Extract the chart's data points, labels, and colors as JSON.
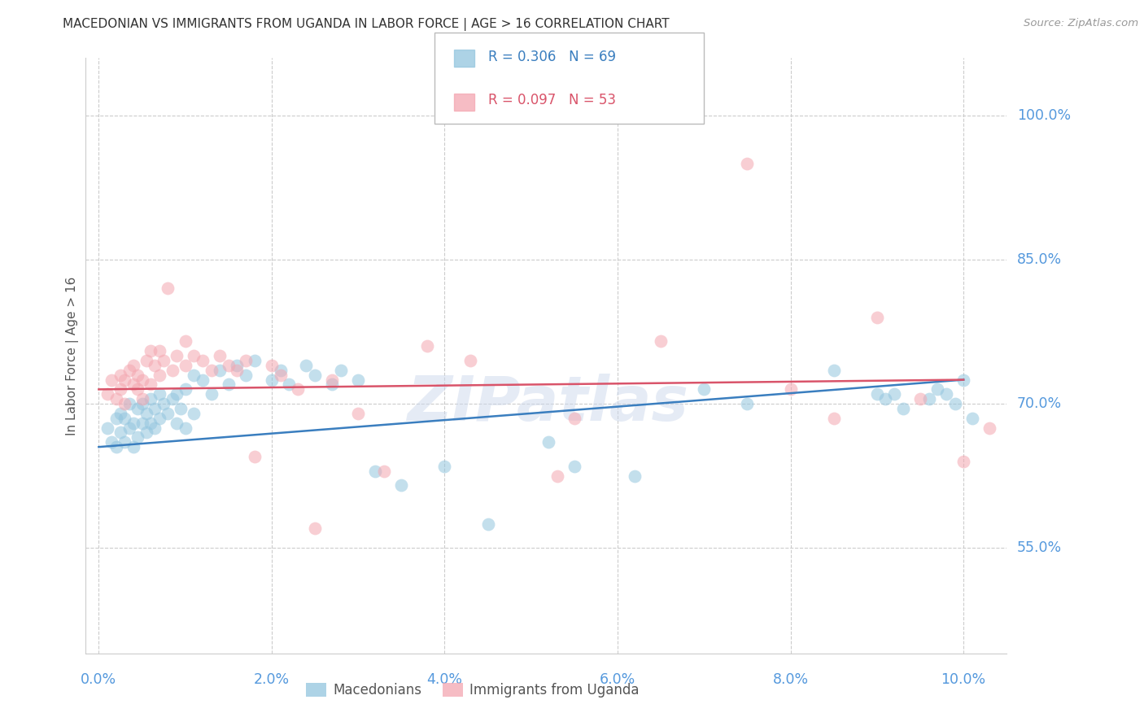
{
  "title": "MACEDONIAN VS IMMIGRANTS FROM UGANDA IN LABOR FORCE | AGE > 16 CORRELATION CHART",
  "source": "Source: ZipAtlas.com",
  "ylabel": "In Labor Force | Age > 16",
  "blue_r": "R = 0.306",
  "blue_n": "N = 69",
  "pink_r": "R = 0.097",
  "pink_n": "N = 53",
  "legend_label_blue": "Macedonians",
  "legend_label_pink": "Immigrants from Uganda",
  "watermark": "ZIPatlas",
  "blue_color": "#92c5de",
  "pink_color": "#f4a6b0",
  "blue_line_color": "#3a7ebf",
  "pink_line_color": "#d9546a",
  "grid_color": "#cccccc",
  "background_color": "#ffffff",
  "tick_label_color": "#5599dd",
  "title_color": "#333333",
  "xlim": [
    -0.15,
    10.5
  ],
  "ylim": [
    44.0,
    106.0
  ],
  "yticks": [
    55.0,
    70.0,
    85.0,
    100.0
  ],
  "xticks": [
    0,
    2,
    4,
    6,
    8,
    10
  ],
  "xtick_labels": [
    "0.0%",
    "2.0%",
    "4.0%",
    "6.0%",
    "8.0%",
    "10.0%"
  ],
  "ytick_labels": [
    "55.0%",
    "70.0%",
    "85.0%",
    "100.0%"
  ],
  "blue_x": [
    0.1,
    0.15,
    0.2,
    0.2,
    0.25,
    0.25,
    0.3,
    0.3,
    0.35,
    0.35,
    0.4,
    0.4,
    0.45,
    0.45,
    0.5,
    0.5,
    0.55,
    0.55,
    0.6,
    0.6,
    0.65,
    0.65,
    0.7,
    0.7,
    0.75,
    0.8,
    0.85,
    0.9,
    0.9,
    0.95,
    1.0,
    1.0,
    1.1,
    1.1,
    1.2,
    1.3,
    1.4,
    1.5,
    1.6,
    1.7,
    1.8,
    2.0,
    2.1,
    2.2,
    2.4,
    2.5,
    2.7,
    2.8,
    3.0,
    3.2,
    3.5,
    4.0,
    4.5,
    5.2,
    5.5,
    6.2,
    7.0,
    7.5,
    8.5,
    9.0,
    9.1,
    9.2,
    9.3,
    9.6,
    9.7,
    9.8,
    9.9,
    10.0,
    10.1
  ],
  "blue_y": [
    67.5,
    66.0,
    68.5,
    65.5,
    69.0,
    67.0,
    68.5,
    66.0,
    70.0,
    67.5,
    68.0,
    65.5,
    69.5,
    66.5,
    70.0,
    68.0,
    69.0,
    67.0,
    70.5,
    68.0,
    69.5,
    67.5,
    71.0,
    68.5,
    70.0,
    69.0,
    70.5,
    71.0,
    68.0,
    69.5,
    71.5,
    67.5,
    73.0,
    69.0,
    72.5,
    71.0,
    73.5,
    72.0,
    74.0,
    73.0,
    74.5,
    72.5,
    73.5,
    72.0,
    74.0,
    73.0,
    72.0,
    73.5,
    72.5,
    63.0,
    61.5,
    63.5,
    57.5,
    66.0,
    63.5,
    62.5,
    71.5,
    70.0,
    73.5,
    71.0,
    70.5,
    71.0,
    69.5,
    70.5,
    71.5,
    71.0,
    70.0,
    72.5,
    68.5
  ],
  "pink_x": [
    0.1,
    0.15,
    0.2,
    0.25,
    0.25,
    0.3,
    0.3,
    0.35,
    0.4,
    0.4,
    0.45,
    0.45,
    0.5,
    0.5,
    0.55,
    0.6,
    0.6,
    0.65,
    0.7,
    0.7,
    0.75,
    0.8,
    0.85,
    0.9,
    1.0,
    1.0,
    1.1,
    1.2,
    1.3,
    1.4,
    1.5,
    1.6,
    1.7,
    1.8,
    2.0,
    2.1,
    2.3,
    2.5,
    2.7,
    3.0,
    3.3,
    3.8,
    4.3,
    5.3,
    5.5,
    6.5,
    7.5,
    8.0,
    8.5,
    9.0,
    9.5,
    10.0,
    10.3
  ],
  "pink_y": [
    71.0,
    72.5,
    70.5,
    73.0,
    71.5,
    72.5,
    70.0,
    73.5,
    72.0,
    74.0,
    71.5,
    73.0,
    72.5,
    70.5,
    74.5,
    75.5,
    72.0,
    74.0,
    75.5,
    73.0,
    74.5,
    82.0,
    73.5,
    75.0,
    74.0,
    76.5,
    75.0,
    74.5,
    73.5,
    75.0,
    74.0,
    73.5,
    74.5,
    64.5,
    74.0,
    73.0,
    71.5,
    57.0,
    72.5,
    69.0,
    63.0,
    76.0,
    74.5,
    62.5,
    68.5,
    76.5,
    95.0,
    71.5,
    68.5,
    79.0,
    70.5,
    64.0,
    67.5
  ]
}
